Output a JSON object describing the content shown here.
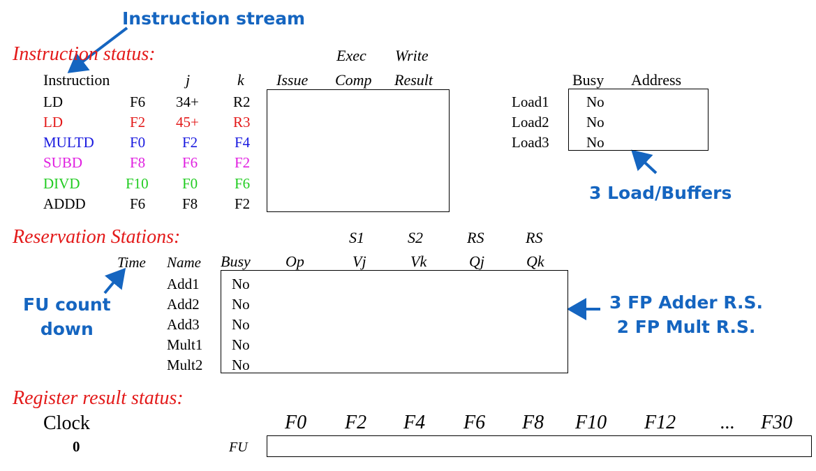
{
  "annotations": {
    "instruction_stream": "Instruction stream",
    "load_buffers": "3 Load/Buffers",
    "fu_count_line1": "FU count",
    "fu_count_line2": "down",
    "rs_count_line1": "3 FP Adder R.S.",
    "rs_count_line2": "2 FP Mult R.S."
  },
  "colors": {
    "section_title": "#e31a1a",
    "annotation": "#1565c0",
    "row_black": "#000000",
    "row_red": "#e31a1a",
    "row_blue": "#1a1adf",
    "row_magenta": "#e020e0",
    "row_green": "#22cc22"
  },
  "instruction_status": {
    "title": "Instruction status:",
    "headers": {
      "instruction": "Instruction",
      "j": "j",
      "k": "k",
      "issue": "Issue",
      "exec_top": "Exec",
      "exec_bottom": "Comp",
      "write_top": "Write",
      "write_bottom": "Result"
    },
    "rows": [
      {
        "op": "LD",
        "dest": "F6",
        "j": "34+",
        "k": "R2",
        "color": "#000000"
      },
      {
        "op": "LD",
        "dest": "F2",
        "j": "45+",
        "k": "R3",
        "color": "#e31a1a"
      },
      {
        "op": "MULTD",
        "dest": "F0",
        "j": "F2",
        "k": "F4",
        "color": "#1a1adf"
      },
      {
        "op": "SUBD",
        "dest": "F8",
        "j": "F6",
        "k": "F2",
        "color": "#e020e0"
      },
      {
        "op": "DIVD",
        "dest": "F10",
        "j": "F0",
        "k": "F6",
        "color": "#22cc22"
      },
      {
        "op": "ADDD",
        "dest": "F6",
        "j": "F8",
        "k": "F2",
        "color": "#000000"
      }
    ]
  },
  "load_buffers": {
    "headers": {
      "busy": "Busy",
      "address": "Address"
    },
    "rows": [
      {
        "name": "Load1",
        "busy": "No"
      },
      {
        "name": "Load2",
        "busy": "No"
      },
      {
        "name": "Load3",
        "busy": "No"
      }
    ]
  },
  "reservation_stations": {
    "title": "Reservation Stations:",
    "headers_top": {
      "s1": "S1",
      "s2": "S2",
      "rs1": "RS",
      "rs2": "RS"
    },
    "headers": {
      "time": "Time",
      "name": "Name",
      "busy": "Busy",
      "op": "Op",
      "vj": "Vj",
      "vk": "Vk",
      "qj": "Qj",
      "qk": "Qk"
    },
    "rows": [
      {
        "name": "Add1",
        "busy": "No"
      },
      {
        "name": "Add2",
        "busy": "No"
      },
      {
        "name": "Add3",
        "busy": "No"
      },
      {
        "name": "Mult1",
        "busy": "No"
      },
      {
        "name": "Mult2",
        "busy": "No"
      }
    ]
  },
  "register_status": {
    "title": "Register result status:",
    "clock_label": "Clock",
    "clock_value": "0",
    "fu_label": "FU",
    "registers": [
      "F0",
      "F2",
      "F4",
      "F6",
      "F8",
      "F10",
      "F12",
      "...",
      "F30"
    ]
  }
}
